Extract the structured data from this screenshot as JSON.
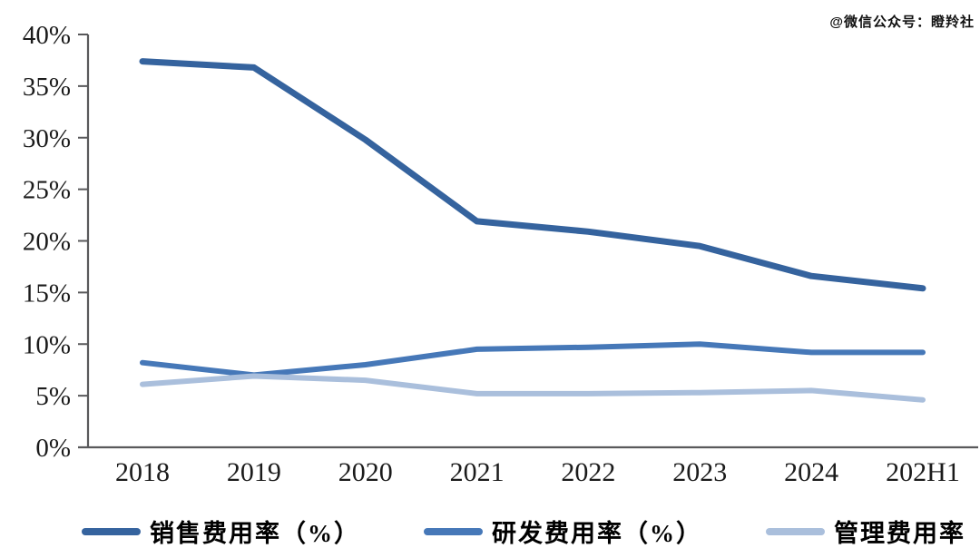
{
  "watermark": "@微信公众号：瞪羚社",
  "colors": {
    "axis": "#59595b",
    "tick_text": "#1b1b1b",
    "background": "#ffffff",
    "series_dark_blue": "#35639e",
    "series_medium_blue": "#4678b8",
    "series_light_blue": "#aabfdc"
  },
  "chart_data": {
    "type": "line",
    "title": "",
    "xlabel": "",
    "ylabel": "",
    "categories": [
      "2018",
      "2019",
      "2020",
      "2021",
      "2022",
      "2023",
      "2024",
      "202H1"
    ],
    "series": [
      {
        "name": "销售费用率（%）",
        "color": "#35639e",
        "stroke_width": 7,
        "values": [
          37.4,
          36.8,
          29.8,
          21.9,
          20.9,
          19.5,
          16.6,
          15.4
        ]
      },
      {
        "name": "研发费用率（%）",
        "color": "#4678b8",
        "stroke_width": 6,
        "values": [
          8.2,
          7.0,
          8.0,
          9.5,
          9.7,
          10.0,
          9.2,
          9.2
        ]
      },
      {
        "name": "管理费用率（%）",
        "color": "#aabfdc",
        "stroke_width": 6,
        "values": [
          6.1,
          6.9,
          6.5,
          5.2,
          5.2,
          5.3,
          5.5,
          4.6
        ]
      }
    ],
    "ylim": [
      0,
      40
    ],
    "ytick_step": 5,
    "ytick_labels": [
      "0%",
      "5%",
      "10%",
      "15%",
      "20%",
      "25%",
      "30%",
      "35%",
      "40%"
    ],
    "grid": false,
    "legend_position": "bottom"
  }
}
